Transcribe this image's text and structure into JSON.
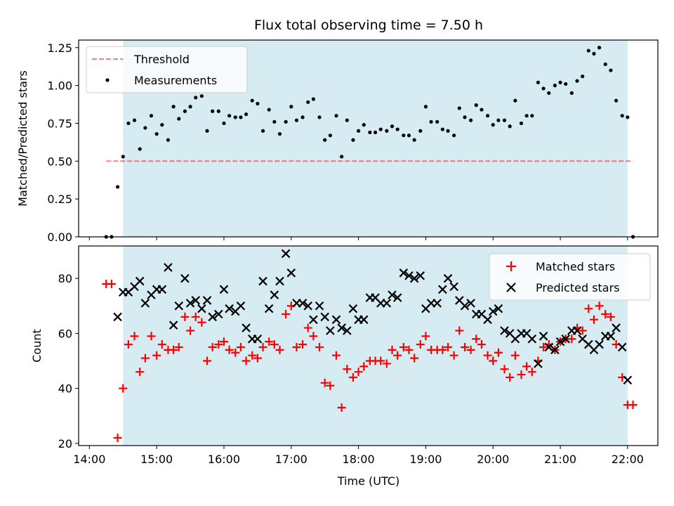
{
  "figure_title": "Flux total observing time = 7.50 h",
  "colors": {
    "observing_span": "#add8e6",
    "threshold": "#ff0000",
    "measurements": "#000000",
    "matched": "#ff0000",
    "predicted": "#000000"
  },
  "top_panel": {
    "ylabel": "Matched/Predicted stars",
    "legend": {
      "threshold": "Threshold",
      "measurements": "Measurements"
    }
  },
  "bottom_panel": {
    "ylabel": "Count",
    "xlabel": "Time (UTC)",
    "legend": {
      "matched": "Matched stars",
      "predicted": "Predicted stars"
    }
  },
  "chart_data": [
    {
      "type": "scatter",
      "title": "Flux total observing time = 7.50 h",
      "xlabel": "",
      "ylabel": "Matched/Predicted stars",
      "x_unit": "hours UTC",
      "xlim": [
        13.84,
        22.45
      ],
      "ylim": [
        0.0,
        1.3
      ],
      "yticks": [
        0.0,
        0.25,
        0.5,
        0.75,
        1.0,
        1.25
      ],
      "ytick_labels": [
        "0.00",
        "0.25",
        "0.50",
        "0.75",
        "1.00",
        "1.25"
      ],
      "xticks": [
        14,
        15,
        16,
        17,
        18,
        19,
        20,
        21,
        22
      ],
      "grid": false,
      "legend_position": "upper left",
      "observing_span": [
        14.5,
        22.0
      ],
      "threshold": {
        "value": 0.5,
        "x_range": [
          14.25,
          22.08
        ],
        "style": "dashed",
        "name": "Threshold"
      },
      "series": [
        {
          "name": "Measurements",
          "x": [
            14.25,
            14.33,
            14.42,
            14.5,
            14.58,
            14.67,
            14.75,
            14.83,
            14.92,
            15.0,
            15.08,
            15.17,
            15.25,
            15.33,
            15.42,
            15.5,
            15.58,
            15.67,
            15.75,
            15.83,
            15.92,
            16.0,
            16.08,
            16.17,
            16.25,
            16.33,
            16.42,
            16.5,
            16.58,
            16.67,
            16.75,
            16.83,
            16.92,
            17.0,
            17.08,
            17.17,
            17.25,
            17.33,
            17.42,
            17.5,
            17.58,
            17.67,
            17.75,
            17.83,
            17.92,
            18.0,
            18.08,
            18.17,
            18.25,
            18.33,
            18.42,
            18.5,
            18.58,
            18.67,
            18.75,
            18.83,
            18.92,
            19.0,
            19.08,
            19.17,
            19.25,
            19.33,
            19.42,
            19.5,
            19.58,
            19.67,
            19.75,
            19.83,
            19.92,
            20.0,
            20.08,
            20.17,
            20.25,
            20.33,
            20.42,
            20.5,
            20.58,
            20.67,
            20.75,
            20.83,
            20.92,
            21.0,
            21.08,
            21.17,
            21.25,
            21.33,
            21.42,
            21.5,
            21.58,
            21.67,
            21.75,
            21.83,
            21.92,
            22.0,
            22.08
          ],
          "y": [
            0.0,
            0.0,
            0.33,
            0.53,
            0.75,
            0.77,
            0.58,
            0.72,
            0.8,
            0.68,
            0.74,
            0.64,
            0.86,
            0.78,
            0.83,
            0.86,
            0.92,
            0.93,
            0.7,
            0.83,
            0.83,
            0.75,
            0.8,
            0.79,
            0.79,
            0.81,
            0.9,
            0.88,
            0.7,
            0.84,
            0.76,
            0.68,
            0.76,
            0.86,
            0.77,
            0.79,
            0.89,
            0.91,
            0.79,
            0.64,
            0.67,
            0.8,
            0.53,
            0.77,
            0.64,
            0.7,
            0.74,
            0.69,
            0.69,
            0.71,
            0.7,
            0.73,
            0.71,
            0.67,
            0.67,
            0.64,
            0.7,
            0.86,
            0.76,
            0.76,
            0.71,
            0.7,
            0.67,
            0.85,
            0.79,
            0.77,
            0.87,
            0.84,
            0.8,
            0.74,
            0.77,
            0.77,
            0.73,
            0.9,
            0.75,
            0.8,
            0.8,
            1.02,
            0.98,
            0.95,
            1.0,
            1.02,
            1.01,
            0.95,
            1.03,
            1.06,
            1.23,
            1.21,
            1.25,
            1.14,
            1.1,
            0.9,
            0.8,
            0.79,
            0.0
          ]
        }
      ]
    },
    {
      "type": "scatter",
      "title": "",
      "xlabel": "Time (UTC)",
      "ylabel": "Count",
      "x_unit": "hours UTC",
      "xlim": [
        13.84,
        22.45
      ],
      "ylim": [
        19.2,
        91.8
      ],
      "yticks": [
        20,
        40,
        60,
        80
      ],
      "xticks": [
        14,
        15,
        16,
        17,
        18,
        19,
        20,
        21,
        22
      ],
      "xtick_labels": [
        "14:00",
        "15:00",
        "16:00",
        "17:00",
        "18:00",
        "19:00",
        "20:00",
        "21:00",
        "22:00"
      ],
      "grid": false,
      "legend_position": "upper right",
      "observing_span": [
        14.5,
        22.0
      ],
      "series": [
        {
          "name": "Matched stars",
          "marker": "plus",
          "x": [
            14.25,
            14.33,
            14.42,
            14.5,
            14.58,
            14.67,
            14.75,
            14.83,
            14.92,
            15.0,
            15.08,
            15.17,
            15.25,
            15.33,
            15.42,
            15.5,
            15.58,
            15.67,
            15.75,
            15.83,
            15.92,
            16.0,
            16.08,
            16.17,
            16.25,
            16.33,
            16.42,
            16.5,
            16.58,
            16.67,
            16.75,
            16.83,
            16.92,
            17.0,
            17.08,
            17.17,
            17.25,
            17.33,
            17.42,
            17.5,
            17.58,
            17.67,
            17.75,
            17.83,
            17.92,
            18.0,
            18.08,
            18.17,
            18.25,
            18.33,
            18.42,
            18.5,
            18.58,
            18.67,
            18.75,
            18.83,
            18.92,
            19.0,
            19.08,
            19.17,
            19.25,
            19.33,
            19.42,
            19.5,
            19.58,
            19.67,
            19.75,
            19.83,
            19.92,
            20.0,
            20.08,
            20.17,
            20.25,
            20.33,
            20.42,
            20.5,
            20.58,
            20.67,
            20.75,
            20.83,
            20.92,
            21.0,
            21.08,
            21.17,
            21.25,
            21.33,
            21.42,
            21.5,
            21.58,
            21.67,
            21.75,
            21.83,
            21.92,
            22.0,
            22.08
          ],
          "y": [
            78,
            78,
            22,
            40,
            56,
            59,
            46,
            51,
            59,
            52,
            56,
            54,
            54,
            55,
            66,
            61,
            66,
            64,
            50,
            55,
            56,
            57,
            54,
            53,
            55,
            50,
            52,
            51,
            55,
            57,
            56,
            54,
            67,
            70,
            55,
            56,
            62,
            59,
            55,
            42,
            41,
            52,
            33,
            47,
            44,
            46,
            48,
            50,
            50,
            50,
            49,
            54,
            52,
            55,
            54,
            51,
            56,
            59,
            54,
            54,
            54,
            55,
            52,
            61,
            55,
            54,
            58,
            56,
            52,
            50,
            53,
            47,
            44,
            52,
            45,
            48,
            46,
            50,
            55,
            56,
            54,
            57,
            58,
            58,
            62,
            61,
            69,
            65,
            70,
            67,
            66,
            56,
            44,
            34,
            34
          ]
        },
        {
          "name": "Predicted stars",
          "marker": "x",
          "x": [
            14.42,
            14.5,
            14.58,
            14.67,
            14.75,
            14.83,
            14.92,
            15.0,
            15.08,
            15.17,
            15.25,
            15.33,
            15.42,
            15.5,
            15.58,
            15.67,
            15.75,
            15.83,
            15.92,
            16.0,
            16.08,
            16.17,
            16.25,
            16.33,
            16.42,
            16.5,
            16.58,
            16.67,
            16.75,
            16.83,
            16.92,
            17.0,
            17.08,
            17.17,
            17.25,
            17.33,
            17.42,
            17.5,
            17.58,
            17.67,
            17.75,
            17.83,
            17.92,
            18.0,
            18.08,
            18.17,
            18.25,
            18.33,
            18.42,
            18.5,
            18.58,
            18.67,
            18.75,
            18.83,
            18.92,
            19.0,
            19.08,
            19.17,
            19.25,
            19.33,
            19.42,
            19.5,
            19.58,
            19.67,
            19.75,
            19.83,
            19.92,
            20.0,
            20.08,
            20.17,
            20.25,
            20.33,
            20.42,
            20.5,
            20.58,
            20.67,
            20.75,
            20.83,
            20.92,
            21.0,
            21.08,
            21.17,
            21.25,
            21.33,
            21.42,
            21.5,
            21.58,
            21.67,
            21.75,
            21.83,
            21.92,
            22.0
          ],
          "y": [
            66,
            75,
            75,
            77,
            79,
            71,
            74,
            76,
            76,
            84,
            63,
            70,
            80,
            71,
            72,
            69,
            72,
            66,
            67,
            76,
            69,
            68,
            70,
            62,
            58,
            58,
            79,
            69,
            74,
            79,
            89,
            82,
            71,
            71,
            70,
            65,
            70,
            66,
            61,
            65,
            62,
            61,
            69,
            65,
            65,
            73,
            73,
            71,
            71,
            74,
            73,
            82,
            81,
            80,
            81,
            69,
            71,
            71,
            76,
            80,
            77,
            72,
            70,
            71,
            67,
            67,
            65,
            68,
            69,
            61,
            60,
            58,
            60,
            60,
            58,
            49,
            59,
            55,
            54,
            57,
            58,
            61,
            61,
            58,
            56,
            54,
            56,
            59,
            59,
            62,
            55,
            43
          ]
        }
      ]
    }
  ]
}
